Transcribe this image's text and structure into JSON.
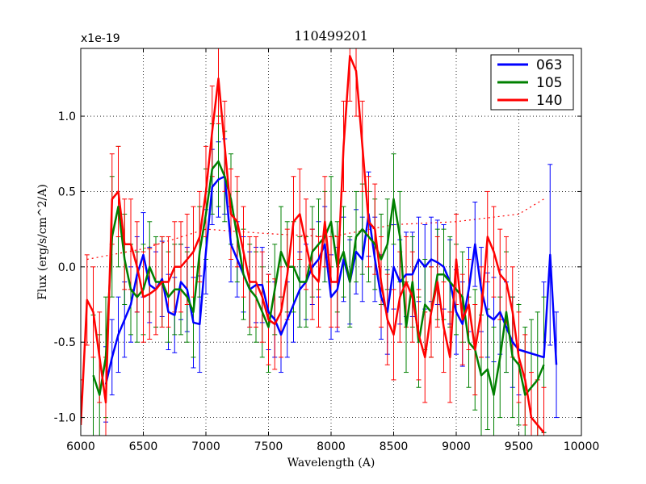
{
  "chart_data": {
    "type": "line",
    "title": "110499201",
    "xlabel": "Wavelength (A)",
    "ylabel": "Flux (erg/s/cm^2/A)",
    "y_offset_label": "x1e-19",
    "xlim": [
      6000,
      10000
    ],
    "ylim": [
      -1.12,
      1.45
    ],
    "xticks": [
      6000,
      6500,
      7000,
      7500,
      8000,
      8500,
      9000,
      9500,
      10000
    ],
    "xtick_labels": [
      "6000",
      "6500",
      "7000",
      "7500",
      "8000",
      "8500",
      "9000",
      "9500",
      "10000"
    ],
    "yticks": [
      -1.0,
      -0.5,
      0.0,
      0.5,
      1.0
    ],
    "ytick_labels": [
      "-1.0",
      "-0.5",
      "0.0",
      "0.5",
      "1.0"
    ],
    "grid": true,
    "legend_position": "top-right",
    "series": [
      {
        "name": "063",
        "color": "#0000ff",
        "x": [
          6200,
          6250,
          6300,
          6350,
          6400,
          6450,
          6500,
          6550,
          6600,
          6650,
          6700,
          6750,
          6800,
          6850,
          6900,
          6950,
          7000,
          7050,
          7100,
          7150,
          7200,
          7250,
          7300,
          7350,
          7400,
          7450,
          7500,
          7550,
          7600,
          7650,
          7700,
          7750,
          7800,
          7850,
          7900,
          7950,
          8000,
          8050,
          8100,
          8150,
          8200,
          8250,
          8300,
          8350,
          8400,
          8450,
          8500,
          8550,
          8600,
          8650,
          8700,
          8750,
          8800,
          8850,
          8900,
          8950,
          9000,
          9050,
          9100,
          9150,
          9200,
          9250,
          9300,
          9350,
          9400,
          9450,
          9500,
          9700,
          9750,
          9800
        ],
        "y": [
          -0.78,
          -0.6,
          -0.45,
          -0.35,
          -0.25,
          -0.05,
          0.08,
          -0.12,
          -0.15,
          -0.08,
          -0.3,
          -0.32,
          -0.1,
          -0.15,
          -0.37,
          -0.38,
          0.1,
          0.53,
          0.58,
          0.6,
          0.15,
          0.05,
          -0.05,
          -0.15,
          -0.12,
          -0.12,
          -0.3,
          -0.35,
          -0.45,
          -0.35,
          -0.25,
          -0.15,
          -0.1,
          0.0,
          0.05,
          0.15,
          -0.2,
          -0.15,
          0.05,
          -0.1,
          0.1,
          0.05,
          0.35,
          0.05,
          -0.2,
          -0.3,
          0.0,
          -0.1,
          -0.05,
          -0.05,
          0.05,
          0.0,
          0.05,
          0.03,
          0.0,
          -0.1,
          -0.3,
          -0.38,
          -0.15,
          0.15,
          -0.15,
          -0.32,
          -0.35,
          -0.3,
          -0.4,
          -0.5,
          -0.55,
          -0.6,
          0.08,
          -0.65
        ],
        "err": [
          0.25,
          0.25,
          0.25,
          0.25,
          0.25,
          0.25,
          0.28,
          0.25,
          0.25,
          0.25,
          0.25,
          0.25,
          0.25,
          0.28,
          0.3,
          0.32,
          0.28,
          0.25,
          0.25,
          0.25,
          0.25,
          0.25,
          0.25,
          0.25,
          0.25,
          0.25,
          0.25,
          0.25,
          0.25,
          0.25,
          0.25,
          0.25,
          0.25,
          0.25,
          0.25,
          0.25,
          0.28,
          0.28,
          0.28,
          0.28,
          0.28,
          0.28,
          0.28,
          0.28,
          0.28,
          0.28,
          0.28,
          0.28,
          0.28,
          0.28,
          0.28,
          0.28,
          0.28,
          0.28,
          0.28,
          0.28,
          0.28,
          0.28,
          0.28,
          0.28,
          0.28,
          0.28,
          0.28,
          0.28,
          0.3,
          0.3,
          0.3,
          0.5,
          0.6,
          0.35
        ]
      },
      {
        "name": "105",
        "color": "#008000",
        "x": [
          6100,
          6150,
          6200,
          6250,
          6300,
          6350,
          6400,
          6450,
          6500,
          6550,
          6600,
          6650,
          6700,
          6750,
          6800,
          6850,
          6900,
          6950,
          7000,
          7050,
          7100,
          7150,
          7200,
          7250,
          7300,
          7350,
          7400,
          7450,
          7500,
          7550,
          7600,
          7650,
          7700,
          7750,
          7800,
          7850,
          7900,
          7950,
          8000,
          8050,
          8100,
          8150,
          8200,
          8250,
          8300,
          8350,
          8400,
          8450,
          8500,
          8550,
          8600,
          8650,
          8700,
          8750,
          8800,
          8850,
          8900,
          8950,
          9000,
          9050,
          9100,
          9150,
          9200,
          9250,
          9300,
          9350,
          9400,
          9450,
          9500,
          9550,
          9600,
          9650,
          9700
        ],
        "y": [
          -0.72,
          -0.85,
          -0.6,
          0.2,
          0.4,
          0.05,
          -0.15,
          -0.2,
          -0.15,
          0.0,
          -0.1,
          -0.1,
          -0.2,
          -0.15,
          -0.15,
          -0.2,
          -0.3,
          0.1,
          0.35,
          0.65,
          0.7,
          0.6,
          0.45,
          0.2,
          -0.05,
          -0.15,
          -0.2,
          -0.3,
          -0.4,
          -0.15,
          0.1,
          0.0,
          0.0,
          -0.1,
          -0.1,
          0.1,
          0.15,
          0.2,
          0.3,
          0.0,
          0.1,
          -0.1,
          0.2,
          0.25,
          0.2,
          0.15,
          0.05,
          0.15,
          0.45,
          0.2,
          -0.4,
          -0.1,
          -0.5,
          -0.25,
          -0.3,
          -0.05,
          -0.05,
          -0.1,
          -0.15,
          -0.2,
          -0.5,
          -0.55,
          -0.72,
          -0.68,
          -0.85,
          -0.6,
          -0.3,
          -0.6,
          -0.65,
          -0.85,
          -0.8,
          -0.75,
          -0.65
        ],
        "err": [
          0.4,
          0.4,
          0.4,
          0.4,
          0.4,
          0.3,
          0.3,
          0.3,
          0.3,
          0.3,
          0.3,
          0.3,
          0.3,
          0.3,
          0.3,
          0.3,
          0.3,
          0.3,
          0.3,
          0.3,
          0.3,
          0.3,
          0.3,
          0.3,
          0.3,
          0.3,
          0.3,
          0.3,
          0.3,
          0.3,
          0.3,
          0.3,
          0.3,
          0.3,
          0.3,
          0.3,
          0.3,
          0.3,
          0.3,
          0.3,
          0.3,
          0.3,
          0.3,
          0.3,
          0.3,
          0.3,
          0.3,
          0.3,
          0.3,
          0.3,
          0.3,
          0.3,
          0.3,
          0.3,
          0.3,
          0.3,
          0.3,
          0.3,
          0.3,
          0.3,
          0.3,
          0.4,
          0.4,
          0.4,
          0.45,
          0.4,
          0.4,
          0.4,
          0.4,
          0.45,
          0.45,
          0.45,
          0.45
        ]
      },
      {
        "name": "140",
        "color": "#ff0000",
        "x": [
          6000,
          6050,
          6100,
          6150,
          6200,
          6250,
          6300,
          6350,
          6400,
          6450,
          6500,
          6550,
          6600,
          6650,
          6700,
          6750,
          6800,
          6850,
          6900,
          6950,
          7000,
          7050,
          7100,
          7150,
          7200,
          7250,
          7300,
          7350,
          7400,
          7450,
          7500,
          7550,
          7600,
          7650,
          7700,
          7750,
          7800,
          7850,
          7900,
          7950,
          8000,
          8050,
          8100,
          8150,
          8200,
          8250,
          8300,
          8350,
          8400,
          8450,
          8500,
          8550,
          8600,
          8650,
          8700,
          8750,
          8800,
          8850,
          8900,
          8950,
          9000,
          9050,
          9100,
          9150,
          9200,
          9250,
          9300,
          9350,
          9400,
          9450,
          9500,
          9550,
          9600,
          9650,
          9700
        ],
        "y": [
          -1.05,
          -0.22,
          -0.3,
          -0.6,
          -0.9,
          0.45,
          0.5,
          0.15,
          0.15,
          0.0,
          -0.2,
          -0.18,
          -0.15,
          -0.1,
          -0.1,
          0.0,
          0.0,
          0.05,
          0.1,
          0.2,
          0.5,
          0.9,
          1.25,
          0.8,
          0.35,
          0.3,
          0.1,
          -0.1,
          -0.1,
          -0.2,
          -0.35,
          -0.38,
          -0.3,
          -0.05,
          0.3,
          0.35,
          0.15,
          -0.05,
          -0.1,
          0.3,
          -0.1,
          -0.1,
          0.8,
          1.4,
          1.3,
          0.8,
          0.3,
          0.25,
          -0.1,
          -0.35,
          -0.45,
          -0.2,
          -0.1,
          -0.2,
          -0.45,
          -0.6,
          -0.3,
          -0.1,
          -0.4,
          -0.6,
          0.05,
          -0.35,
          -0.25,
          -0.55,
          -0.3,
          0.2,
          0.1,
          -0.05,
          -0.1,
          -0.3,
          -0.6,
          -0.75,
          -1.0,
          -1.05,
          -1.1
        ],
        "err": [
          0.3,
          0.3,
          0.3,
          0.3,
          0.3,
          0.3,
          0.3,
          0.3,
          0.3,
          0.3,
          0.3,
          0.3,
          0.3,
          0.3,
          0.3,
          0.3,
          0.3,
          0.3,
          0.3,
          0.3,
          0.3,
          0.3,
          0.3,
          0.3,
          0.3,
          0.3,
          0.3,
          0.3,
          0.3,
          0.3,
          0.3,
          0.3,
          0.3,
          0.3,
          0.3,
          0.3,
          0.3,
          0.3,
          0.3,
          0.3,
          0.3,
          0.3,
          0.3,
          0.3,
          0.3,
          0.3,
          0.3,
          0.3,
          0.3,
          0.3,
          0.3,
          0.3,
          0.3,
          0.3,
          0.3,
          0.3,
          0.3,
          0.3,
          0.3,
          0.3,
          0.3,
          0.3,
          0.3,
          0.3,
          0.3,
          0.3,
          0.3,
          0.3,
          0.3,
          0.3,
          0.3,
          0.3,
          0.3,
          0.3,
          0.3
        ]
      }
    ],
    "reference_line": {
      "style": "dotted",
      "color": "#ff0000",
      "x": [
        6050,
        6500,
        7000,
        7500,
        8000,
        8500,
        9000,
        9500,
        9700
      ],
      "y": [
        0.05,
        0.12,
        0.25,
        0.22,
        0.2,
        0.28,
        0.3,
        0.35,
        0.45
      ]
    }
  }
}
